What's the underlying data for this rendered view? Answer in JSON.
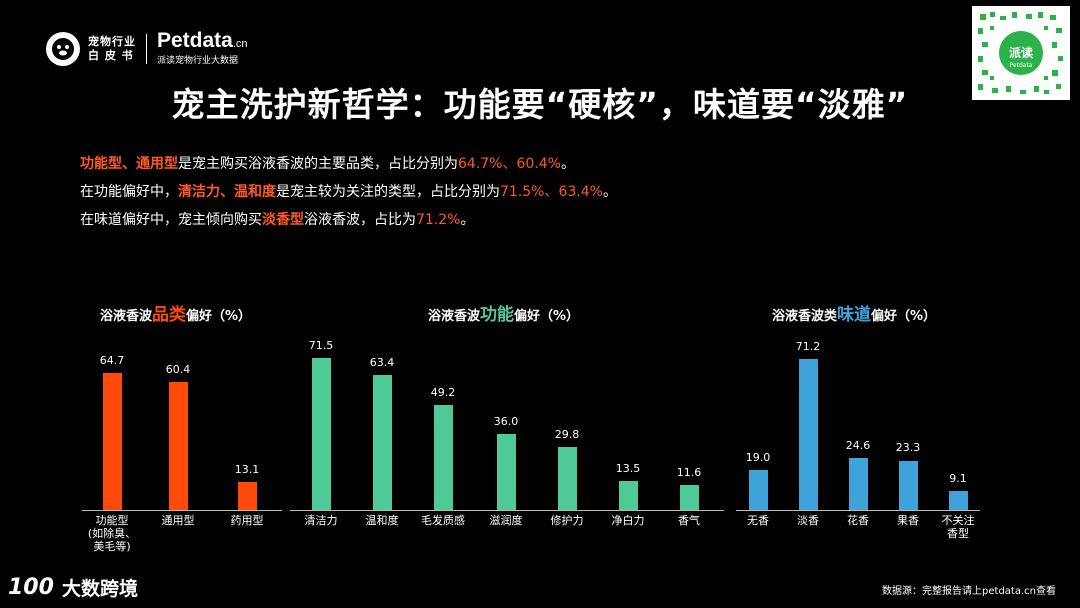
{
  "logo": {
    "line1": "宠物行业",
    "line2": "白 皮 书",
    "brand": "Petdata",
    "brand_suffix": ".cn",
    "brand_sub": "派读宠物行业大数据"
  },
  "qr": {
    "label": "派读",
    "sub": "Petdata"
  },
  "title": "宠主洗护新哲学：功能要“硬核”，味道要“淡雅”",
  "lines": [
    {
      "segments": [
        {
          "t": "功能型、通用型",
          "h": "strong"
        },
        {
          "t": "是宠主购买浴液香波的主要品类，占比分别为",
          "h": ""
        },
        {
          "t": "64.7%、60.4%",
          "h": "num"
        },
        {
          "t": "。",
          "h": ""
        }
      ]
    },
    {
      "segments": [
        {
          "t": "在功能偏好中，",
          "h": ""
        },
        {
          "t": "清洁力、温和度",
          "h": "strong"
        },
        {
          "t": "是宠主较为关注的类型，占比分别为",
          "h": ""
        },
        {
          "t": "71.5%、63.4%",
          "h": "num"
        },
        {
          "t": "。",
          "h": ""
        }
      ]
    },
    {
      "segments": [
        {
          "t": "在味道偏好中，宠主倾向购买",
          "h": ""
        },
        {
          "t": "淡香型",
          "h": "strong"
        },
        {
          "t": "浴液香波，占比为",
          "h": ""
        },
        {
          "t": "71.2%",
          "h": "num"
        },
        {
          "t": "。",
          "h": ""
        }
      ]
    }
  ],
  "chart_data": [
    {
      "type": "bar",
      "title_pre": "浴液香波",
      "title_em": "品类",
      "title_post": "偏好（%）",
      "color": "#ff4a0a",
      "categories": [
        "功能型\n(如除臭、\n美毛等)",
        "通用型",
        "药用型"
      ],
      "values": [
        64.7,
        60.4,
        13.1
      ],
      "labels": [
        "64.7",
        "60.4",
        "13.1"
      ],
      "ylim": [
        0,
        80
      ]
    },
    {
      "type": "bar",
      "title_pre": "浴液香波",
      "title_em": "功能",
      "title_post": "偏好（%）",
      "color": "#4fc996",
      "categories": [
        "清洁力",
        "温和度",
        "毛发质感",
        "滋润度",
        "修护力",
        "净白力",
        "香气"
      ],
      "values": [
        71.5,
        63.4,
        49.2,
        36.0,
        29.8,
        13.5,
        11.6
      ],
      "labels": [
        "71.5",
        "63.4",
        "49.2",
        "36.0",
        "29.8",
        "13.5",
        "11.6"
      ],
      "ylim": [
        0,
        80
      ]
    },
    {
      "type": "bar",
      "title_pre": "浴液香波类",
      "title_em": "味道",
      "title_post": "偏好（%）",
      "color": "#3fa3d9",
      "categories": [
        "无香",
        "淡香",
        "花香",
        "果香",
        "不关注\n香型"
      ],
      "values": [
        19.0,
        71.2,
        24.6,
        23.3,
        9.1
      ],
      "labels": [
        "19.0",
        "71.2",
        "24.6",
        "23.3",
        "9.1"
      ],
      "ylim": [
        0,
        80
      ]
    }
  ],
  "footer": {
    "brand": "大数跨境",
    "brand_mark": "100",
    "source": "数据源：完整报告请上petdata.cn查看"
  }
}
